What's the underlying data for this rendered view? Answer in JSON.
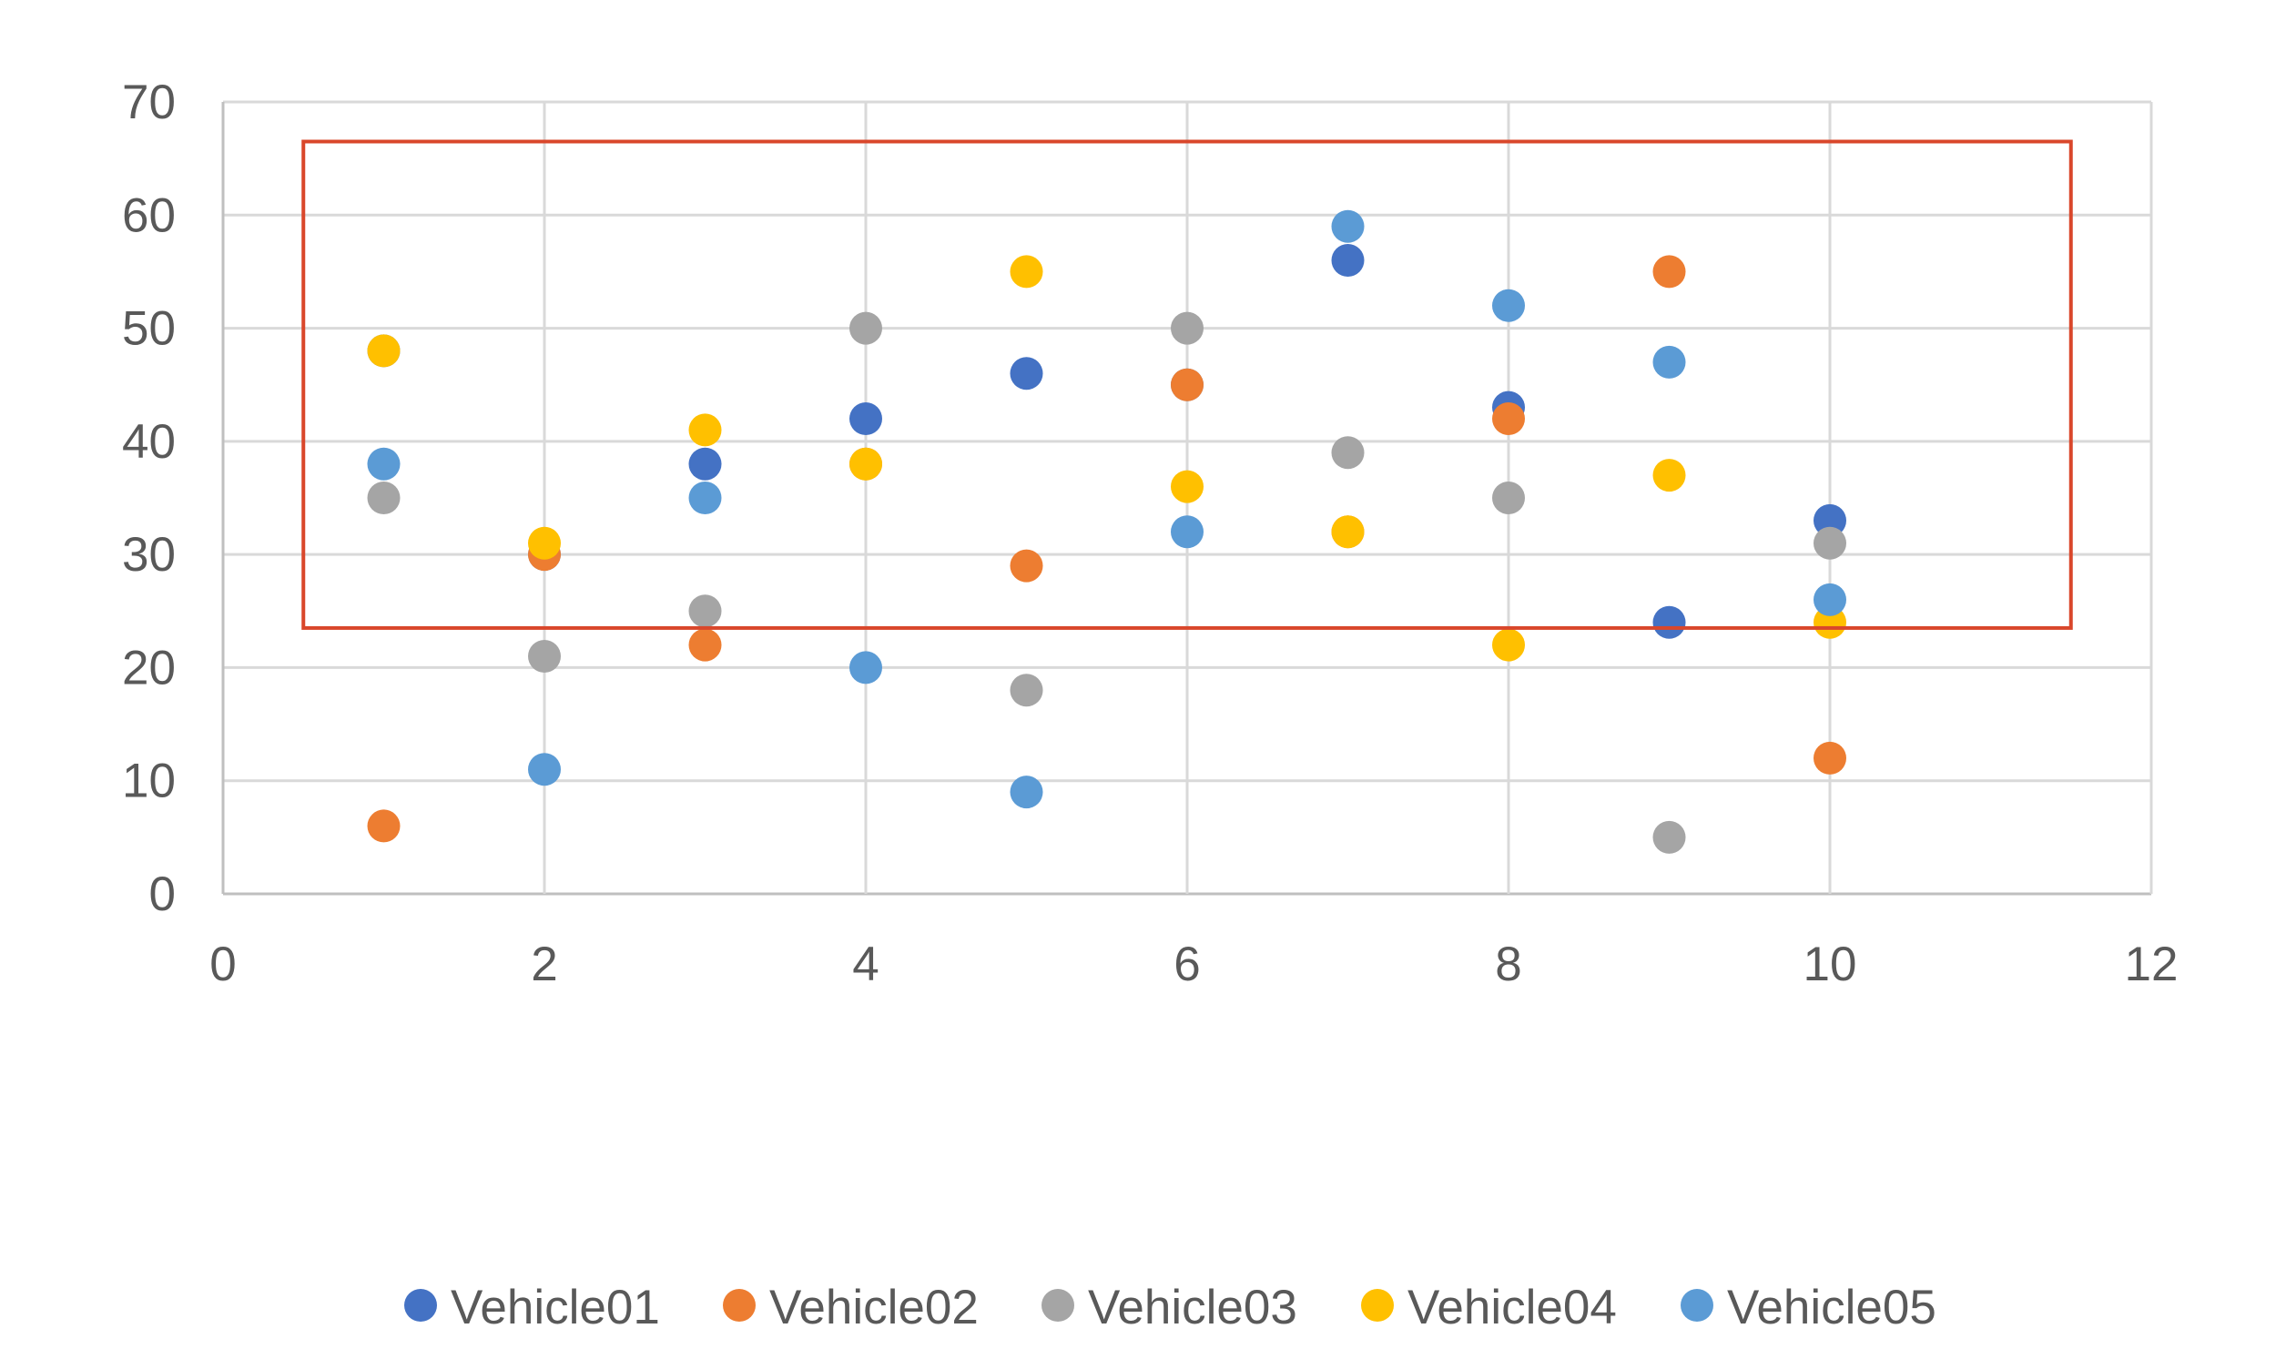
{
  "chart_data": {
    "type": "scatter",
    "title": "",
    "xlabel": "",
    "ylabel": "",
    "xlim": [
      0,
      12
    ],
    "ylim": [
      0,
      70
    ],
    "xticks": [
      0,
      2,
      4,
      6,
      8,
      10,
      12
    ],
    "yticks": [
      0,
      10,
      20,
      30,
      40,
      50,
      60,
      70
    ],
    "grid": true,
    "legend_position": "bottom",
    "series": [
      {
        "name": "Vehicle01",
        "color": "#4472C4",
        "x": [
          1,
          2,
          3,
          4,
          5,
          6,
          7,
          8,
          9,
          10
        ],
        "y": [
          48,
          30,
          38,
          42,
          46,
          45,
          56,
          43,
          24,
          33
        ]
      },
      {
        "name": "Vehicle02",
        "color": "#ED7D31",
        "x": [
          1,
          2,
          3,
          4,
          5,
          6,
          7,
          8,
          9,
          10
        ],
        "y": [
          6,
          30,
          22,
          38,
          29,
          45,
          32,
          42,
          55,
          12
        ]
      },
      {
        "name": "Vehicle03",
        "color": "#A5A5A5",
        "x": [
          1,
          2,
          3,
          4,
          5,
          6,
          7,
          8,
          9,
          10
        ],
        "y": [
          35,
          21,
          25,
          50,
          18,
          50,
          39,
          35,
          5,
          31
        ]
      },
      {
        "name": "Vehicle04",
        "color": "#FFC000",
        "x": [
          1,
          2,
          3,
          4,
          5,
          6,
          7,
          8,
          9,
          10
        ],
        "y": [
          48,
          31,
          41,
          38,
          55,
          36,
          32,
          22,
          37,
          24
        ]
      },
      {
        "name": "Vehicle05",
        "color": "#5B9BD5",
        "x": [
          1,
          2,
          3,
          4,
          5,
          6,
          7,
          8,
          9,
          10
        ],
        "y": [
          38,
          11,
          35,
          20,
          9,
          32,
          59,
          52,
          47,
          26
        ]
      }
    ],
    "annotation": {
      "type": "rectangle",
      "color": "#D9472B",
      "x_range": [
        0.5,
        11.5
      ],
      "y_range": [
        23.5,
        66.5
      ]
    }
  }
}
